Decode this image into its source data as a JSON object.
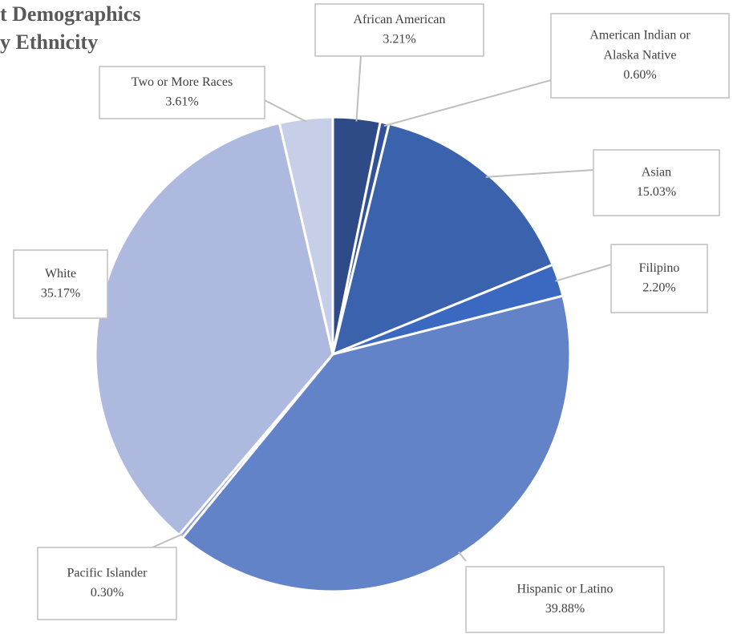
{
  "chart_data": {
    "type": "pie",
    "title": "t Demographics",
    "subtitle": "y Ethnicity",
    "categories": [
      "African American",
      "American Indian or Alaska Native",
      "Asian",
      "Filipino",
      "Hispanic or Latino",
      "Pacific Islander",
      "White",
      "Two or More Races"
    ],
    "values": [
      3.21,
      0.6,
      15.03,
      2.2,
      39.88,
      0.3,
      35.17,
      3.61
    ],
    "value_labels": [
      "3.21%",
      "0.60%",
      "15.03%",
      "2.20%",
      "39.88%",
      "0.30%",
      "35.17%",
      "3.61%"
    ],
    "colors": [
      "#2e4a87",
      "#31519a",
      "#3a62ad",
      "#3b68c0",
      "#6383c9",
      "#8ea3d8",
      "#adb9de",
      "#c7cfe8"
    ]
  }
}
